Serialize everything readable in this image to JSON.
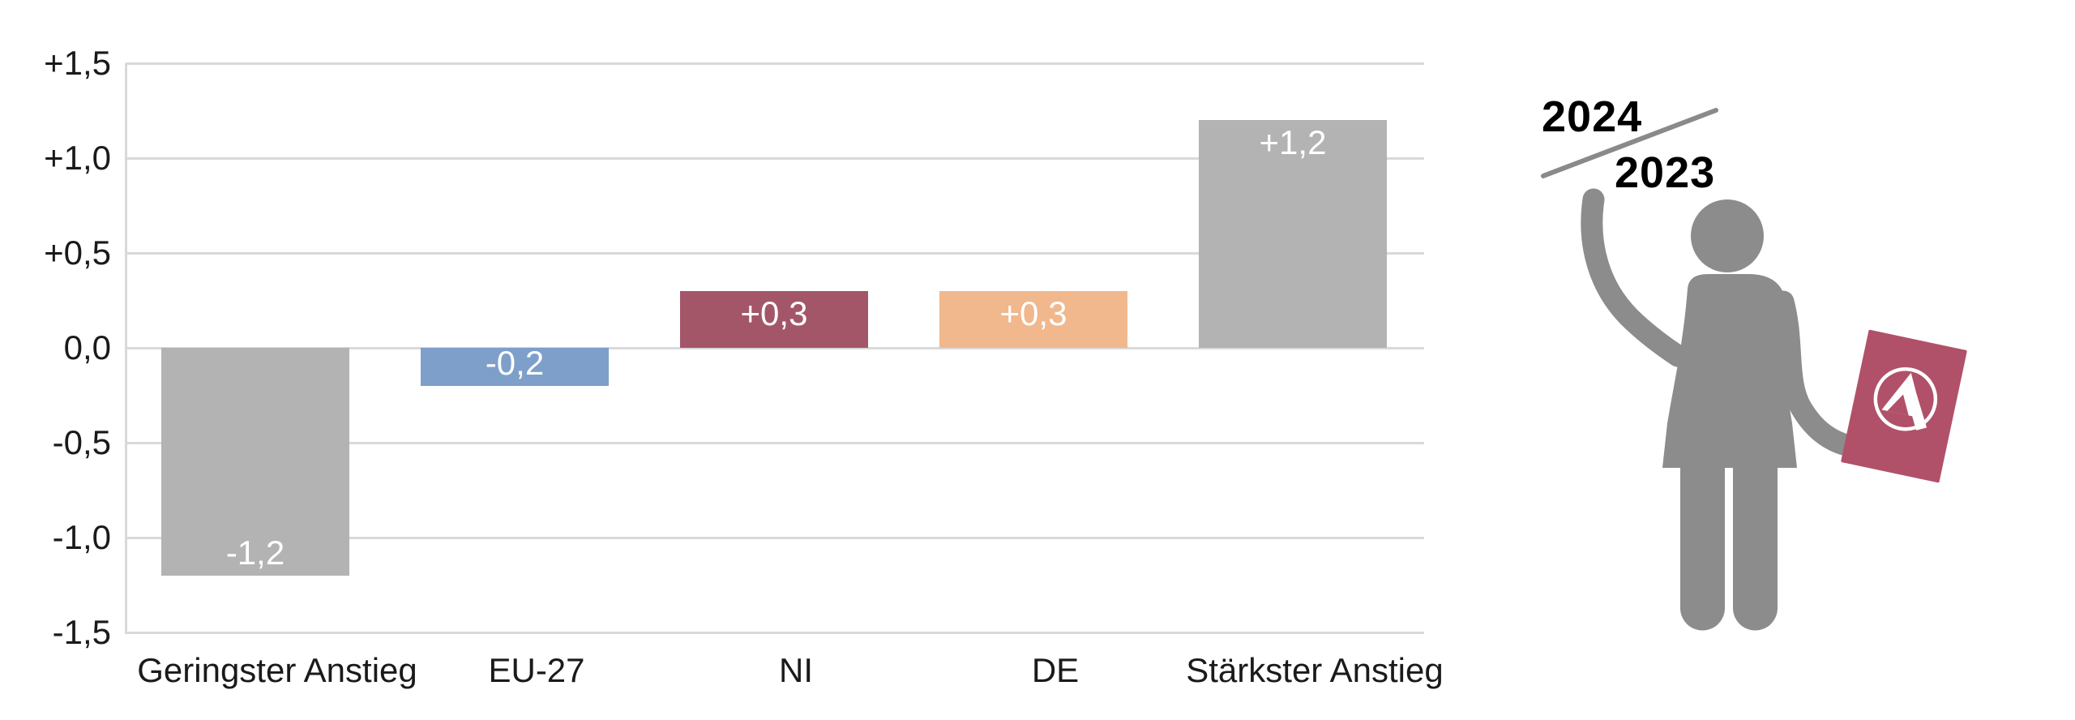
{
  "chart_data": {
    "type": "bar",
    "categories": [
      "Geringster Anstieg",
      "EU-27",
      "NI",
      "DE",
      "Stärkster Anstieg"
    ],
    "values": [
      -1.2,
      -0.2,
      0.3,
      0.3,
      1.2
    ],
    "bar_value_labels": [
      "-1,2",
      "-0,2",
      "+0,3",
      "+0,3",
      "+1,2"
    ],
    "bar_colors": [
      "#b3b3b3",
      "#7d9fca",
      "#a45669",
      "#f0b88c",
      "#b3b3b3"
    ],
    "title": "",
    "xlabel": "",
    "ylabel": "",
    "ylim": [
      -1.5,
      1.5
    ],
    "grid": true,
    "legend": "none",
    "y_ticks": [
      {
        "value": 1.5,
        "label": "+1,5"
      },
      {
        "value": 1.0,
        "label": "+1,0"
      },
      {
        "value": 0.5,
        "label": "+0,5"
      },
      {
        "value": 0.0,
        "label": "0,0"
      },
      {
        "value": -0.5,
        "label": "-0,5"
      },
      {
        "value": -1.0,
        "label": "-1,0"
      },
      {
        "value": -1.5,
        "label": "-1,5"
      }
    ]
  },
  "annotation": {
    "year_top": "2024",
    "year_bottom": "2023"
  },
  "illustration": {
    "name": "person-holding-ba-document",
    "logo_icon": "ba-agentur-fuer-arbeit-logo"
  },
  "colors": {
    "background": "#ffffff",
    "grid": "#d9d9d9",
    "axis_text": "#1a1a1a",
    "bar_value_text": "#ffffff",
    "figure_gray": "#8c8c8c",
    "document_rose": "#b05169",
    "logo_white": "#ffffff",
    "year_gray": "#8a8a8a"
  }
}
